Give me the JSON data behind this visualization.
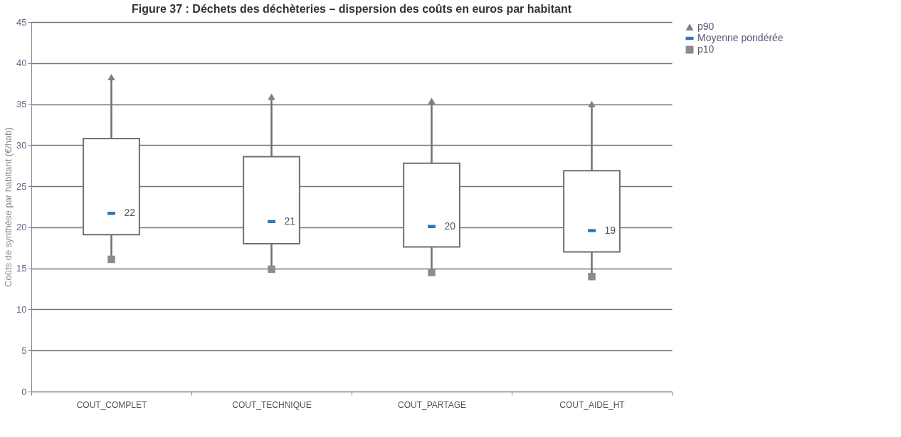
{
  "chart_data": {
    "type": "box",
    "title": "Figure 37 : Déchets des déchèteries – dispersion des coûts en euros par habitant",
    "ylabel": "Coûts de synthèse par habitant (€/hab)",
    "categories": [
      "COUT_COMPLET",
      "COUT_TECHNIQUE",
      "COUT_PARTAGE",
      "COUT_AIDE_HT"
    ],
    "boxes": [
      {
        "low": 16.1,
        "q1": 19.1,
        "q3": 30.8,
        "high": 38.3
      },
      {
        "low": 14.9,
        "q1": 18.0,
        "q3": 28.6,
        "high": 35.9
      },
      {
        "low": 14.5,
        "q1": 17.6,
        "q3": 27.8,
        "high": 35.4
      },
      {
        "low": 14.0,
        "q1": 17.0,
        "q3": 26.9,
        "high": 35.0
      }
    ],
    "value_labels": [
      "22",
      "21",
      "20",
      "19"
    ],
    "series": [
      {
        "name": "p90",
        "type": "scatter",
        "marker": "triangle",
        "color": "#7f7f7f",
        "values": [
          38.3,
          35.9,
          35.4,
          35.0
        ]
      },
      {
        "name": "Moyenne pondérée",
        "type": "scatter",
        "color": "#2e75b6",
        "values": [
          21.7,
          20.7,
          20.1,
          19.6
        ]
      },
      {
        "name": "p10",
        "type": "scatter",
        "marker": "square",
        "color": "#8c8c8c",
        "values": [
          16.1,
          14.9,
          14.5,
          14.0
        ]
      }
    ],
    "ylim": [
      0,
      45
    ],
    "yticks": [
      0,
      5,
      10,
      15,
      20,
      25,
      30,
      35,
      40,
      45
    ],
    "grid": "y",
    "legend": "right"
  }
}
